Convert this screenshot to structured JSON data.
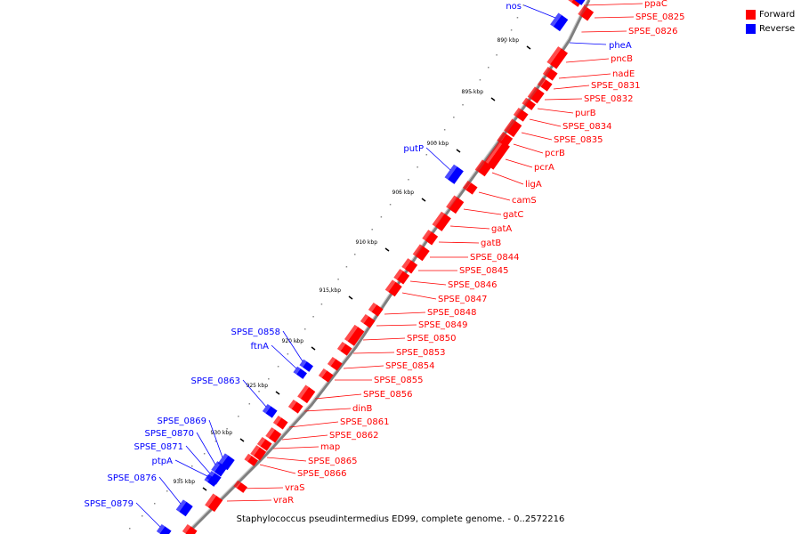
{
  "caption": "Staphylococcus pseudintermedius ED99, complete genome. - 0..2572216",
  "legend": [
    {
      "label": "Forward",
      "color": "#ff0000"
    },
    {
      "label": "Reverse",
      "color": "#0000ff"
    }
  ],
  "colors": {
    "forward": "#ff0000",
    "reverse": "#0000ff",
    "backbone": "#7f7f7f"
  },
  "ticks": [
    {
      "label": "890 kbp",
      "kbp": 890
    },
    {
      "label": "895 kbp",
      "kbp": 895
    },
    {
      "label": "900 kbp",
      "kbp": 900
    },
    {
      "label": "905 kbp",
      "kbp": 905
    },
    {
      "label": "910 kbp",
      "kbp": 910
    },
    {
      "label": "915 kbp",
      "kbp": 915
    },
    {
      "label": "920 kbp",
      "kbp": 920
    },
    {
      "label": "925 kbp",
      "kbp": 925
    },
    {
      "label": "930 kbp",
      "kbp": 930
    },
    {
      "label": "935 kbp",
      "kbp": 935
    }
  ],
  "forward_genes": [
    "ppaC",
    "SPSE_0825",
    "SPSE_0826",
    "pncB",
    "nadE",
    "SPSE_0831",
    "SPSE_0832",
    "purB",
    "SPSE_0834",
    "SPSE_0835",
    "pcrB",
    "pcrA",
    "ligA",
    "camS",
    "gatC",
    "gatA",
    "gatB",
    "SPSE_0844",
    "SPSE_0845",
    "SPSE_0846",
    "SPSE_0847",
    "SPSE_0848",
    "SPSE_0849",
    "SPSE_0850",
    "SPSE_0853",
    "SPSE_0854",
    "SPSE_0855",
    "SPSE_0856",
    "dinB",
    "SPSE_0861",
    "SPSE_0862",
    "map",
    "SPSE_0865",
    "SPSE_0866",
    "vraS",
    "vraR"
  ],
  "reverse_genes": [
    "nos",
    "pheA",
    "putP",
    "SPSE_0858",
    "ftnA",
    "SPSE_0863",
    "SPSE_0869",
    "SPSE_0870",
    "SPSE_0871",
    "ptpA",
    "SPSE_0876",
    "SPSE_0879"
  ]
}
